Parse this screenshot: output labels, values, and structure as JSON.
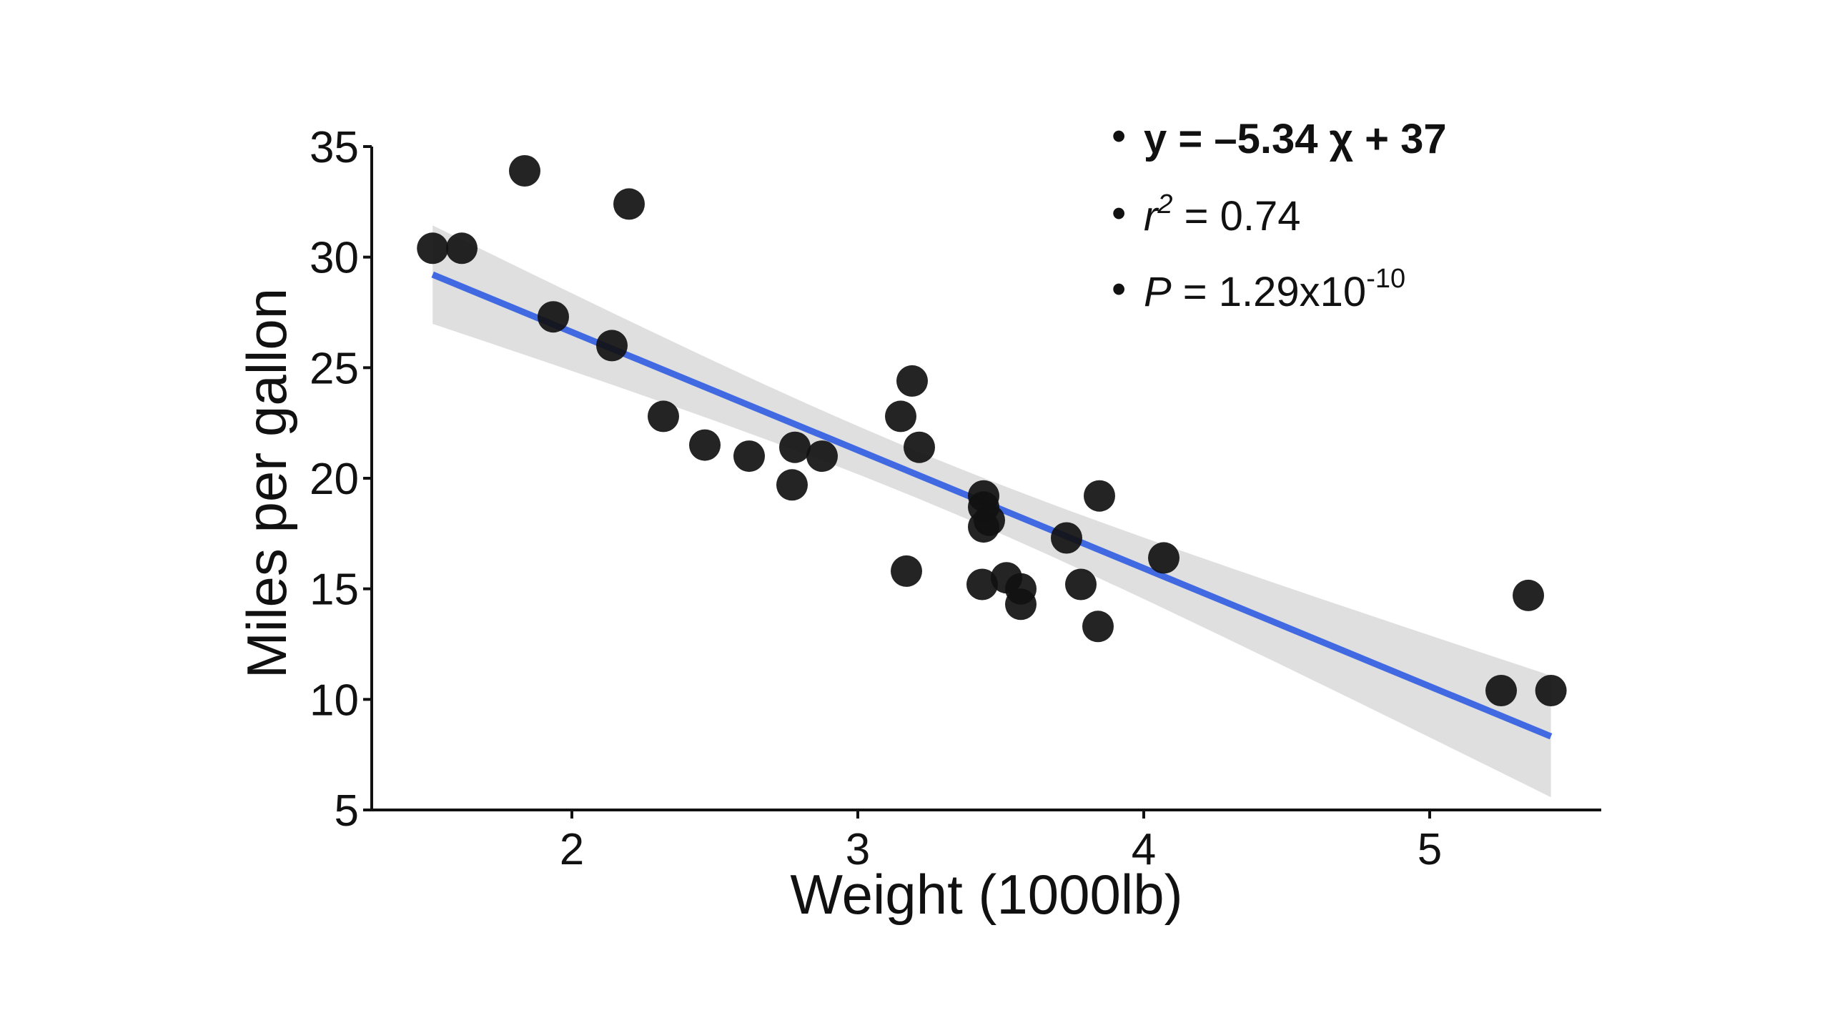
{
  "chart_data": {
    "type": "scatter",
    "xlabel": "Weight (1000lb)",
    "ylabel": "Miles per gallon",
    "xlim": [
      1.3,
      5.6
    ],
    "ylim": [
      5,
      35
    ],
    "x_ticks": [
      2,
      3,
      4,
      5
    ],
    "y_ticks": [
      5,
      10,
      15,
      20,
      25,
      30,
      35
    ],
    "grid": false,
    "point_color": "#111111",
    "fit_color": "#4169e1",
    "band_color": "#d9d9d9",
    "points": [
      {
        "x": 2.62,
        "y": 21.0
      },
      {
        "x": 2.875,
        "y": 21.0
      },
      {
        "x": 2.32,
        "y": 22.8
      },
      {
        "x": 3.215,
        "y": 21.4
      },
      {
        "x": 3.44,
        "y": 18.7
      },
      {
        "x": 3.46,
        "y": 18.1
      },
      {
        "x": 3.57,
        "y": 14.3
      },
      {
        "x": 3.19,
        "y": 24.4
      },
      {
        "x": 3.15,
        "y": 22.8
      },
      {
        "x": 3.44,
        "y": 19.2
      },
      {
        "x": 3.44,
        "y": 17.8
      },
      {
        "x": 4.07,
        "y": 16.4
      },
      {
        "x": 3.73,
        "y": 17.3
      },
      {
        "x": 3.78,
        "y": 15.2
      },
      {
        "x": 5.25,
        "y": 10.4
      },
      {
        "x": 5.424,
        "y": 10.4
      },
      {
        "x": 5.345,
        "y": 14.7
      },
      {
        "x": 2.2,
        "y": 32.4
      },
      {
        "x": 1.615,
        "y": 30.4
      },
      {
        "x": 1.835,
        "y": 33.9
      },
      {
        "x": 2.465,
        "y": 21.5
      },
      {
        "x": 3.52,
        "y": 15.5
      },
      {
        "x": 3.435,
        "y": 15.2
      },
      {
        "x": 3.84,
        "y": 13.3
      },
      {
        "x": 3.845,
        "y": 19.2
      },
      {
        "x": 1.935,
        "y": 27.3
      },
      {
        "x": 2.14,
        "y": 26.0
      },
      {
        "x": 1.513,
        "y": 30.4
      },
      {
        "x": 3.17,
        "y": 15.8
      },
      {
        "x": 2.77,
        "y": 19.7
      },
      {
        "x": 3.57,
        "y": 15.0
      },
      {
        "x": 2.78,
        "y": 21.4
      }
    ],
    "fit": {
      "slope": -5.34,
      "intercept": 37.29,
      "x_range": [
        1.513,
        5.424
      ],
      "x_mean": 3.217,
      "ci_halfwidth_min": 1.06,
      "ci_halfwidth_max": 2.75
    }
  },
  "annotations": {
    "equation": "y = –5.34 χ + 37",
    "r2_symbol": "r",
    "r2_exp": "2",
    "r2_value": " = 0.74",
    "p_symbol": "P",
    "p_value": " = 1.29x10",
    "p_exp": "-10",
    "bullet": "•"
  }
}
